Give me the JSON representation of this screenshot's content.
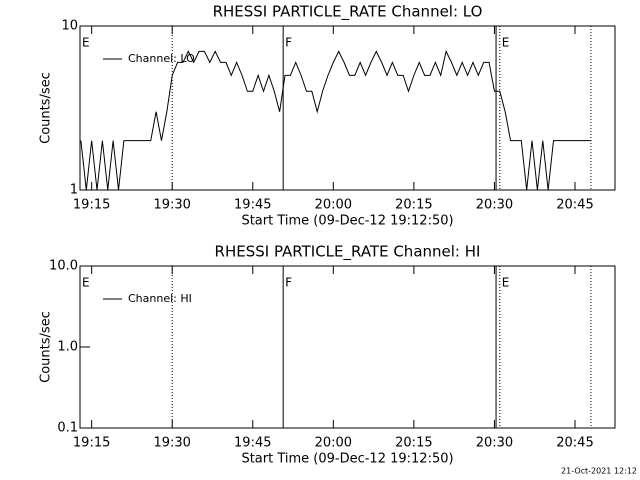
{
  "chart_data": [
    {
      "type": "line",
      "title": "RHESSI PARTICLE_RATE Channel: LO",
      "xlabel": "Start Time (09-Dec-12 19:12:50)",
      "ylabel": "Counts/sec",
      "log_y": true,
      "legend": "upper left",
      "xlim": [
        1152.83,
        1252.45
      ],
      "xticks": [
        {
          "value": 1155,
          "label": "19:15"
        },
        {
          "value": 1170,
          "label": "19:30"
        },
        {
          "value": 1185,
          "label": "19:45"
        },
        {
          "value": 1200,
          "label": "20:00"
        },
        {
          "value": 1215,
          "label": "20:15"
        },
        {
          "value": 1230,
          "label": "20:30"
        },
        {
          "value": 1245,
          "label": "20:45"
        }
      ],
      "ylim": [
        1,
        10
      ],
      "yticks": [
        1,
        10
      ],
      "x": [
        1153,
        1154,
        1155,
        1156,
        1157,
        1158,
        1159,
        1160,
        1161,
        1162,
        1163,
        1164,
        1165,
        1166,
        1167,
        1168,
        1169,
        1170,
        1171,
        1172,
        1173,
        1174,
        1175,
        1176,
        1177,
        1178,
        1179,
        1180,
        1181,
        1182,
        1183,
        1184,
        1185,
        1186,
        1187,
        1188,
        1189,
        1190,
        1191,
        1192,
        1193,
        1194,
        1195,
        1196,
        1197,
        1198,
        1199,
        1200,
        1201,
        1202,
        1203,
        1204,
        1205,
        1206,
        1207,
        1208,
        1209,
        1210,
        1211,
        1212,
        1213,
        1214,
        1215,
        1216,
        1217,
        1218,
        1219,
        1220,
        1221,
        1222,
        1223,
        1224,
        1225,
        1226,
        1227,
        1228,
        1229,
        1230,
        1231,
        1232,
        1233,
        1234,
        1235,
        1236,
        1237,
        1238,
        1239,
        1240,
        1241,
        1242,
        1243,
        1244,
        1245,
        1246,
        1247,
        1248
      ],
      "series": [
        {
          "name": "Channel: LO",
          "color": "#000000",
          "values": [
            2,
            1,
            2,
            1,
            2,
            1,
            2,
            1,
            2,
            2,
            2,
            2,
            2,
            2,
            3,
            2,
            3,
            5,
            6,
            6,
            7,
            6,
            7,
            7,
            6,
            7,
            6,
            6,
            5,
            6,
            5,
            4,
            4,
            5,
            4,
            5,
            4,
            3,
            5,
            5,
            6,
            5,
            4,
            4,
            3,
            4,
            5,
            6,
            7,
            6,
            5,
            5,
            6,
            5,
            6,
            7,
            6,
            5,
            6,
            5,
            5,
            4,
            5,
            6,
            5,
            5,
            6,
            5,
            7,
            6,
            5,
            6,
            5,
            6,
            5,
            6,
            6,
            4,
            4,
            3,
            2,
            2,
            2,
            1,
            2,
            1,
            2,
            1,
            2,
            2,
            2,
            2,
            2,
            2,
            2,
            2
          ]
        }
      ],
      "vlines": [
        {
          "x": 1170,
          "style": "dotted"
        },
        {
          "x": 1190.66,
          "style": "solid"
        },
        {
          "x": 1230.3,
          "style": "solid"
        },
        {
          "x": 1231,
          "style": "dotted"
        },
        {
          "x": 1247.97,
          "style": "dotted"
        }
      ],
      "event_labels": [
        {
          "x": 1152.83,
          "label": "E"
        },
        {
          "x": 1190.66,
          "label": "F"
        },
        {
          "x": 1231,
          "label": "E"
        }
      ]
    },
    {
      "type": "line",
      "title": "RHESSI PARTICLE_RATE Channel: HI",
      "xlabel": "Start Time (09-Dec-12 19:12:50)",
      "ylabel": "Counts/sec",
      "log_y": true,
      "legend": "upper left",
      "xlim": [
        1152.83,
        1252.45
      ],
      "xticks": [
        {
          "value": 1155,
          "label": "19:15"
        },
        {
          "value": 1170,
          "label": "19:30"
        },
        {
          "value": 1185,
          "label": "19:45"
        },
        {
          "value": 1200,
          "label": "20:00"
        },
        {
          "value": 1215,
          "label": "20:15"
        },
        {
          "value": 1230,
          "label": "20:30"
        },
        {
          "value": 1245,
          "label": "20:45"
        }
      ],
      "ylim": [
        0.1,
        10
      ],
      "yticks": [
        0.1,
        {
          "value": 1,
          "label": "1.0"
        },
        {
          "value": 10,
          "label": "10.0"
        }
      ],
      "x": [],
      "series": [
        {
          "name": "Channel: HI",
          "color": "#000000",
          "values": []
        }
      ],
      "vlines": [
        {
          "x": 1170,
          "style": "dotted"
        },
        {
          "x": 1190.66,
          "style": "solid"
        },
        {
          "x": 1230.3,
          "style": "solid"
        },
        {
          "x": 1231,
          "style": "dotted"
        },
        {
          "x": 1247.97,
          "style": "dotted"
        }
      ],
      "event_labels": [
        {
          "x": 1152.83,
          "label": "E"
        },
        {
          "x": 1190.66,
          "label": "F"
        },
        {
          "x": 1231,
          "label": "E"
        }
      ]
    }
  ],
  "footer": "21-Oct-2021 12:12"
}
